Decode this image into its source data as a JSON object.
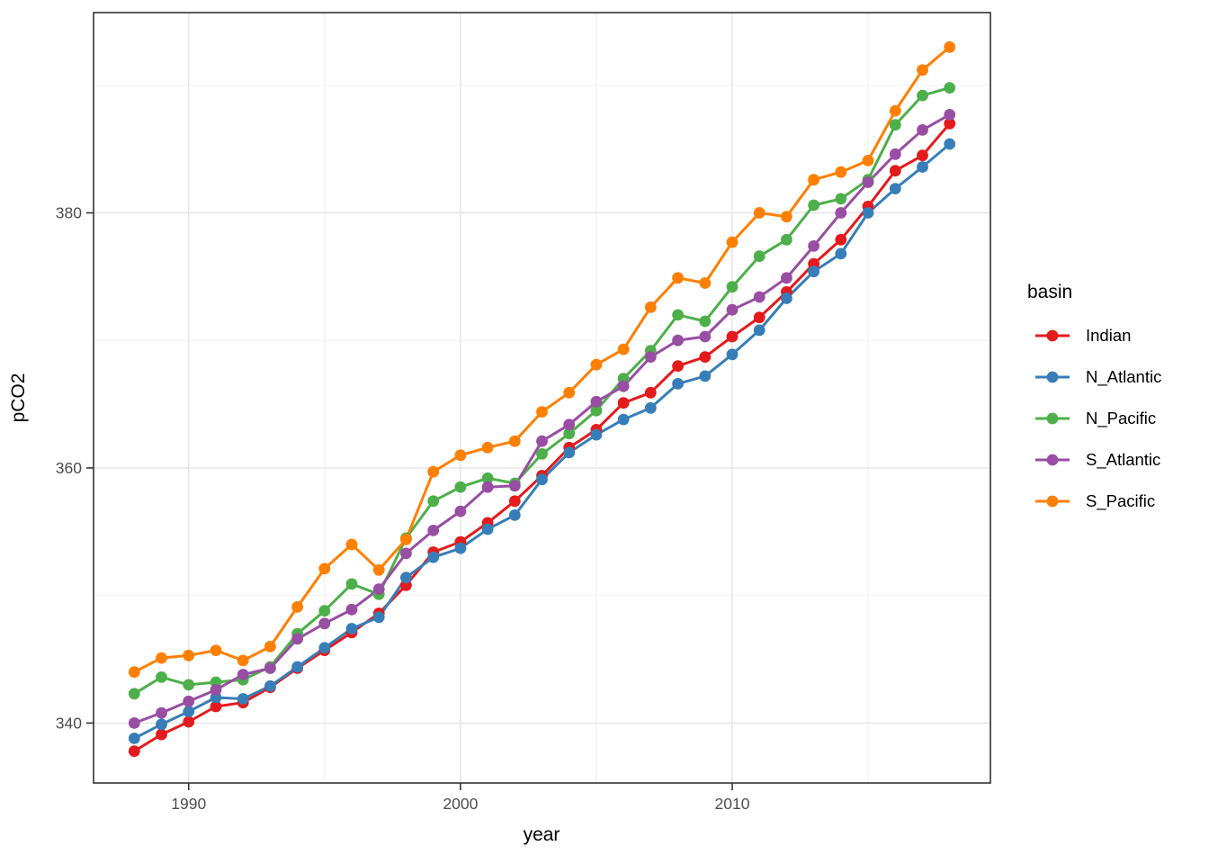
{
  "chart_data": {
    "type": "line",
    "title": "",
    "xlabel": "year",
    "ylabel": "pCO2",
    "legend_title": "basin",
    "legend_position": "right",
    "grid": true,
    "x_domain": [
      1986.5,
      2019.5
    ],
    "y_domain": [
      335.3,
      395.7
    ],
    "x_breaks": [
      1990,
      2000,
      2010
    ],
    "x_minor_breaks": [
      1995,
      2005,
      2015
    ],
    "y_breaks": [
      340,
      360,
      380
    ],
    "y_minor_breaks": [
      350,
      370,
      390
    ],
    "x": [
      1988,
      1989,
      1990,
      1991,
      1992,
      1993,
      1994,
      1995,
      1996,
      1997,
      1998,
      1999,
      2000,
      2001,
      2002,
      2003,
      2004,
      2005,
      2006,
      2007,
      2008,
      2009,
      2010,
      2011,
      2012,
      2013,
      2014,
      2015,
      2016,
      2017,
      2018
    ],
    "series": [
      {
        "name": "Indian",
        "color": "#e41a1c",
        "values": [
          337.8,
          339.1,
          340.1,
          341.3,
          341.6,
          342.8,
          344.3,
          345.7,
          347.1,
          348.6,
          350.8,
          353.4,
          354.2,
          355.7,
          357.4,
          359.4,
          361.6,
          363.0,
          365.1,
          365.9,
          368.0,
          368.7,
          370.3,
          371.8,
          373.8,
          376.0,
          377.9,
          380.5,
          383.3,
          384.5,
          387.0
        ]
      },
      {
        "name": "N_Atlantic",
        "color": "#377eb8",
        "values": [
          338.8,
          339.9,
          340.9,
          342.0,
          341.9,
          342.9,
          344.4,
          345.9,
          347.4,
          348.3,
          351.4,
          353.0,
          353.7,
          355.2,
          356.3,
          359.1,
          361.2,
          362.6,
          363.8,
          364.7,
          366.6,
          367.2,
          368.9,
          370.8,
          373.3,
          375.4,
          376.8,
          380.0,
          381.9,
          383.6,
          385.4
        ]
      },
      {
        "name": "N_Pacific",
        "color": "#4daf4a",
        "values": [
          342.3,
          343.6,
          343.0,
          343.2,
          343.4,
          344.4,
          347.0,
          348.8,
          350.9,
          350.1,
          354.5,
          357.4,
          358.5,
          359.2,
          358.8,
          361.1,
          362.7,
          364.5,
          367.0,
          369.2,
          372.0,
          371.5,
          374.2,
          376.6,
          377.9,
          380.6,
          381.1,
          382.6,
          386.9,
          389.2,
          389.8
        ]
      },
      {
        "name": "S_Atlantic",
        "color": "#984ea3",
        "values": [
          340.0,
          340.8,
          341.7,
          342.6,
          343.8,
          344.3,
          346.6,
          347.8,
          348.9,
          350.5,
          353.3,
          355.1,
          356.6,
          358.5,
          358.6,
          362.1,
          363.4,
          365.2,
          366.4,
          368.7,
          370.0,
          370.3,
          372.4,
          373.4,
          374.9,
          377.4,
          380.0,
          382.4,
          384.6,
          386.5,
          387.7
        ]
      },
      {
        "name": "S_Pacific",
        "color": "#ff7f00",
        "values": [
          344.0,
          345.1,
          345.3,
          345.7,
          344.9,
          346.0,
          349.1,
          352.1,
          354.0,
          352.0,
          354.4,
          359.7,
          361.0,
          361.6,
          362.1,
          364.4,
          365.9,
          368.1,
          369.3,
          372.6,
          374.9,
          374.5,
          377.7,
          380.0,
          379.7,
          382.6,
          383.2,
          384.1,
          388.0,
          391.2,
          393.0
        ]
      }
    ]
  }
}
